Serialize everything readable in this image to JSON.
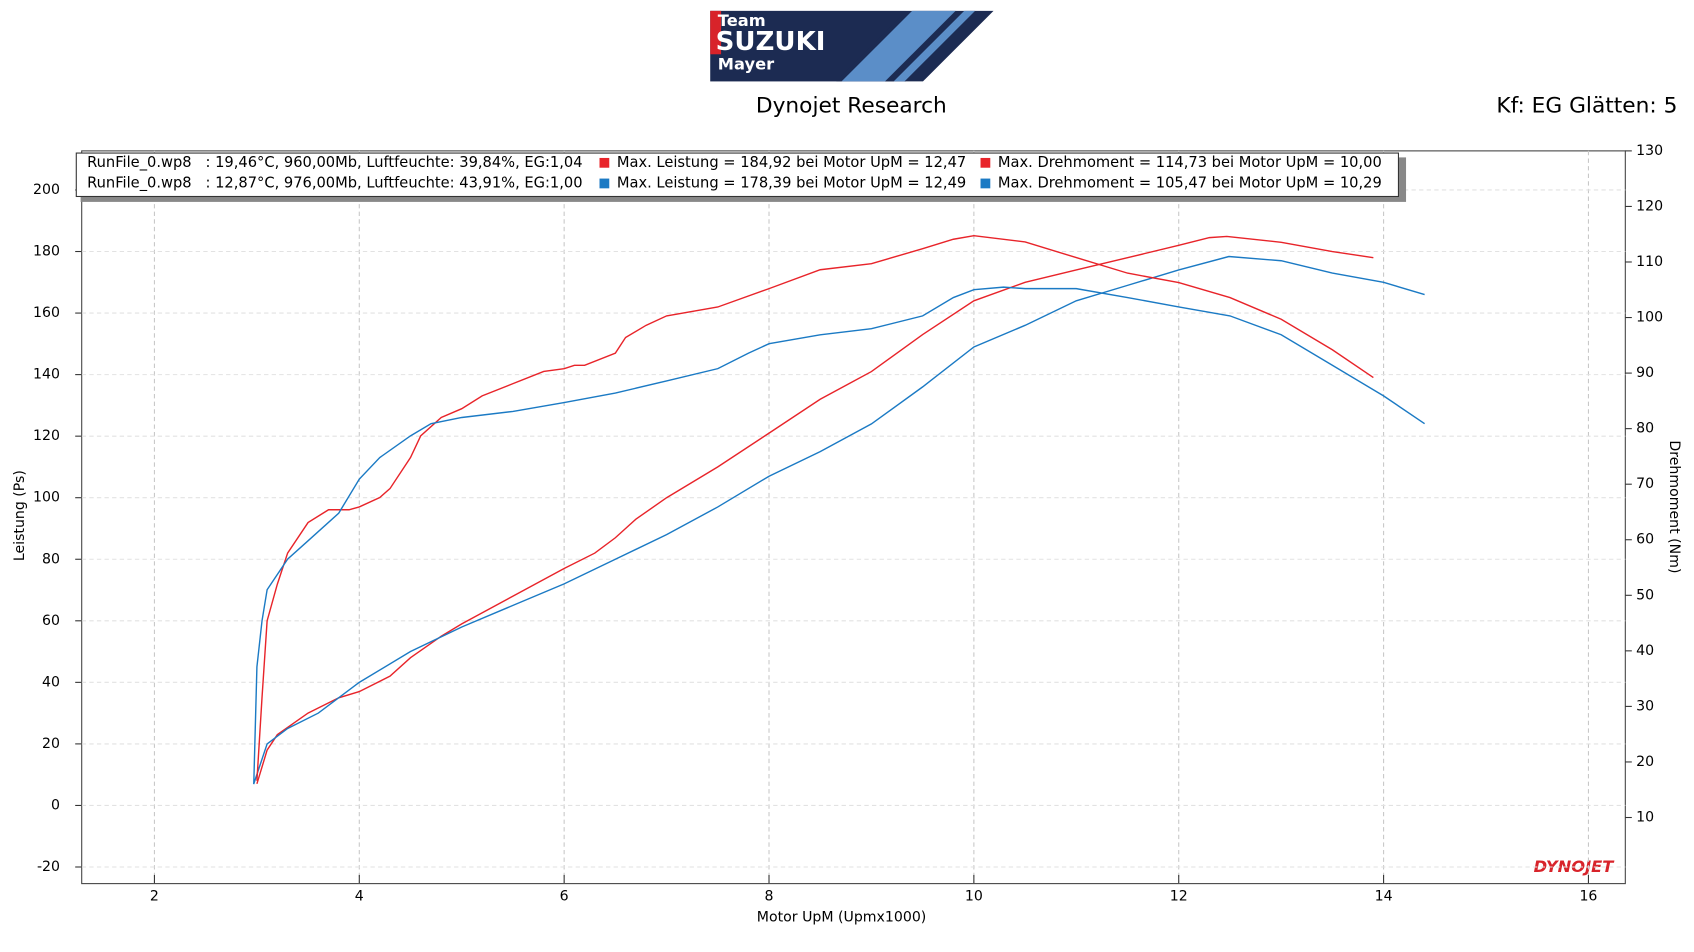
{
  "logo": {
    "line1": "Team",
    "line2": "SUZUKI",
    "line3": "Mayer",
    "brand": "DYNOJET"
  },
  "chart_data": {
    "type": "line",
    "title": "Dynojet Research",
    "subtitle": "Kf: EG Glätten: 5",
    "x_label": "Motor UpM (Upmx1000)",
    "y_label": "Leistung (Ps)",
    "y2_label": "Drehmoment (Nm)",
    "legend_files": [
      "RunFile_0.wp8   : 19,46°C, 960,00Mb, Luftfeuchte: 39,84%, EG:1,04",
      "RunFile_0.wp8   : 12,87°C, 976,00Mb, Luftfeuchte: 43,91%, EG:1,00"
    ],
    "xlim": [
      1.29,
      16.36
    ],
    "xticks": [
      2,
      4,
      6,
      8,
      10,
      12,
      14,
      16
    ],
    "ylim": [
      -25.4,
      212.7
    ],
    "yticks": [
      -20,
      0,
      20,
      40,
      60,
      80,
      100,
      120,
      140,
      160,
      180,
      200
    ],
    "y2lim": [
      -1.9,
      130
    ],
    "y2ticks": [
      10,
      20,
      30,
      40,
      50,
      60,
      70,
      80,
      90,
      100,
      110,
      120,
      130
    ],
    "grid": true,
    "series": [
      {
        "name": "Max. Leistung = 184,92 bei Motor UpM = 12,47",
        "color": "#e8242a",
        "x": [
          3.0,
          3.1,
          3.2,
          3.5,
          3.8,
          4.0,
          4.3,
          4.5,
          4.8,
          5.0,
          5.5,
          6.0,
          6.3,
          6.5,
          6.7,
          7.0,
          7.5,
          8.0,
          8.5,
          9.0,
          9.5,
          10.0,
          10.5,
          11.0,
          11.5,
          12.0,
          12.3,
          12.47,
          13.0,
          13.5,
          13.9
        ],
        "values": [
          7,
          18,
          23,
          30,
          35,
          37,
          42,
          48,
          55,
          59,
          68,
          77,
          82,
          87,
          93,
          100,
          110,
          121,
          132,
          141,
          153,
          164,
          170,
          174,
          178,
          182,
          184.5,
          184.92,
          183,
          180,
          178
        ]
      },
      {
        "name": "Max. Leistung = 178,39 bei Motor UpM = 12,49",
        "color": "#1b7ac4",
        "x": [
          2.97,
          3.1,
          3.3,
          3.6,
          4.0,
          4.5,
          5.0,
          5.5,
          6.0,
          6.5,
          7.0,
          7.5,
          8.0,
          8.5,
          9.0,
          9.5,
          10.0,
          10.5,
          11.0,
          11.5,
          12.0,
          12.49,
          13.0,
          13.5,
          14.0,
          14.4
        ],
        "values": [
          7,
          20,
          25,
          30,
          40,
          50,
          58,
          65,
          72,
          80,
          88,
          97,
          107,
          115,
          124,
          136,
          149,
          156,
          164,
          169,
          174,
          178.39,
          177,
          173,
          170,
          166
        ]
      },
      {
        "name": "Max. Drehmoment = 114,73 bei Motor UpM = 10,00",
        "color": "#e8242a",
        "axis": "y2",
        "x": [
          3.0,
          3.05,
          3.1,
          3.2,
          3.3,
          3.5,
          3.7,
          3.9,
          4.0,
          4.2,
          4.3,
          4.5,
          4.6,
          4.8,
          5.0,
          5.2,
          5.5,
          5.8,
          6.0,
          6.1,
          6.2,
          6.5,
          6.6,
          6.8,
          7.0,
          7.5,
          8.0,
          8.5,
          9.0,
          9.5,
          9.8,
          10.0,
          10.5,
          11.0,
          11.5,
          12.0,
          12.5,
          13.0,
          13.5,
          13.9
        ],
        "values": [
          16.6,
          31.6,
          45.4,
          52.0,
          57.6,
          63.1,
          65.4,
          65.4,
          65.9,
          67.6,
          69.2,
          74.8,
          78.7,
          82.0,
          83.6,
          85.9,
          88.1,
          90.3,
          90.8,
          91.4,
          91.4,
          93.6,
          96.4,
          98.6,
          100.3,
          101.9,
          105.2,
          108.6,
          109.7,
          112.4,
          114.1,
          114.73,
          113.6,
          110.8,
          108.0,
          106.3,
          103.6,
          99.7,
          94.2,
          89.2
        ]
      },
      {
        "name": "Max. Drehmoment = 105,47 bei Motor UpM = 10,29",
        "color": "#1b7ac4",
        "axis": "y2",
        "x": [
          2.97,
          3.0,
          3.05,
          3.1,
          3.3,
          3.5,
          3.8,
          4.0,
          4.2,
          4.5,
          4.7,
          5.0,
          5.5,
          6.0,
          6.5,
          7.0,
          7.5,
          7.8,
          8.0,
          8.5,
          9.0,
          9.5,
          9.8,
          10.0,
          10.29,
          10.5,
          11.0,
          11.5,
          12.0,
          12.5,
          13.0,
          13.5,
          14.0,
          14.4
        ],
        "values": [
          16.0,
          37.1,
          45.4,
          51.0,
          56.5,
          59.8,
          64.8,
          70.9,
          74.8,
          78.7,
          80.9,
          82.0,
          83.1,
          84.7,
          86.4,
          88.6,
          90.8,
          93.6,
          95.3,
          96.9,
          98.0,
          100.3,
          103.6,
          105.0,
          105.47,
          105.2,
          105.2,
          103.6,
          101.9,
          100.3,
          96.9,
          91.4,
          85.9,
          80.9
        ]
      }
    ]
  }
}
